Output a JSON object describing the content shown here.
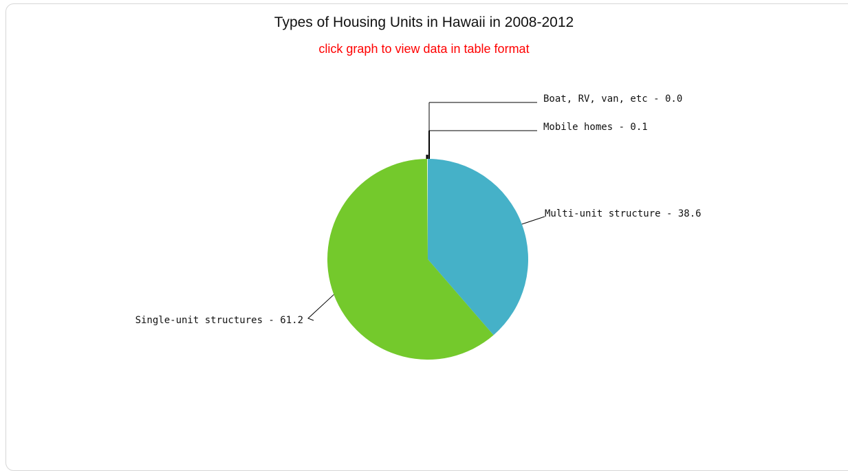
{
  "chart_data": {
    "type": "pie",
    "title": "Types of Housing Units in Hawaii in 2008-2012",
    "subtitle": "click graph to view data in table format",
    "slices": [
      {
        "name": "Multi-unit structure",
        "value": 38.6,
        "label": "Multi-unit structure - 38.6",
        "color": "#45b1c8"
      },
      {
        "name": "Single-unit structures",
        "value": 61.2,
        "label": "Single-unit structures - 61.2",
        "color": "#74c92c"
      },
      {
        "name": "Boat, RV, van, etc",
        "value": 0.0,
        "label": "Boat, RV, van, etc - 0.0",
        "color": "#000000"
      },
      {
        "name": "Mobile homes",
        "value": 0.1,
        "label": "Mobile homes - 0.1",
        "color": "#000000"
      }
    ]
  }
}
